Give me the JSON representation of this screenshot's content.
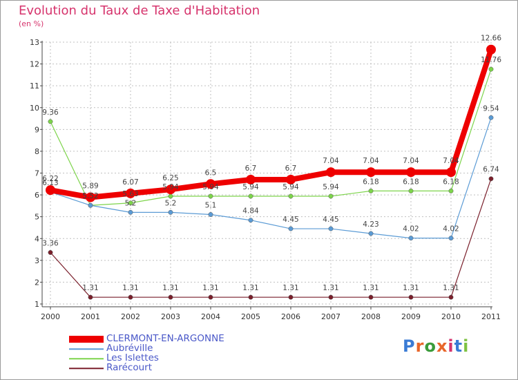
{
  "title": "Evolution du Taux de Taxe d'Habitation",
  "subtitle": "(en %)",
  "logo_text": "Proxiti",
  "chart_data": {
    "type": "line",
    "title": "Evolution du Taux de Taxe d'Habitation",
    "subtitle": "(en %)",
    "x": [
      "2000",
      "2001",
      "2002",
      "2003",
      "2004",
      "2005",
      "2006",
      "2007",
      "2008",
      "2009",
      "2010",
      "2011"
    ],
    "ylim": [
      1,
      13
    ],
    "yticks": [
      1,
      2,
      3,
      4,
      5,
      6,
      7,
      8,
      9,
      10,
      11,
      12,
      13
    ],
    "grid": true,
    "legend_position": "bottom-left",
    "series": [
      {
        "name": "CLERMONT-EN-ARGONNE",
        "color": "#ee0000",
        "values": [
          6.22,
          5.89,
          6.07,
          6.25,
          6.5,
          6.7,
          6.7,
          7.04,
          7.04,
          7.04,
          7.04,
          12.66
        ],
        "labels": [
          "6.22",
          "5.89",
          "6.07",
          "6.25",
          "6.5",
          "6.7",
          "6.7",
          "7.04",
          "7.04",
          "7.04",
          "7.04",
          "12.66"
        ]
      },
      {
        "name": "Aubréville",
        "color": "#5b9bd5",
        "values": [
          6.13,
          5.52,
          5.2,
          5.2,
          5.1,
          4.84,
          4.45,
          4.45,
          4.23,
          4.02,
          4.02,
          9.54
        ],
        "labels": [
          "6.13",
          "5.52",
          "5.2",
          "5.2",
          "5.1",
          "4.84",
          "4.45",
          "4.45",
          "4.23",
          "4.02",
          "4.02",
          "9.54"
        ]
      },
      {
        "name": "Les Islettes",
        "color": "#7dd44b",
        "values": [
          9.36,
          5.52,
          5.63,
          5.94,
          5.94,
          5.94,
          5.94,
          5.94,
          6.18,
          6.18,
          6.18,
          11.76
        ],
        "labels": [
          "9.36",
          "5.52",
          "5.63",
          "5.94",
          "5.94",
          "5.94",
          "5.94",
          "5.94",
          "6.18",
          "6.18",
          "6.18",
          "11.76"
        ]
      },
      {
        "name": "Rarécourt",
        "color": "#7a1f2b",
        "values": [
          3.36,
          1.31,
          1.31,
          1.31,
          1.31,
          1.31,
          1.31,
          1.31,
          1.31,
          1.31,
          1.31,
          6.74
        ],
        "labels": [
          "3.36",
          "1.31",
          "1.31",
          "1.31",
          "1.31",
          "1.31",
          "1.31",
          "1.31",
          "1.31",
          "1.31",
          "1.31",
          "6.74"
        ]
      }
    ]
  }
}
